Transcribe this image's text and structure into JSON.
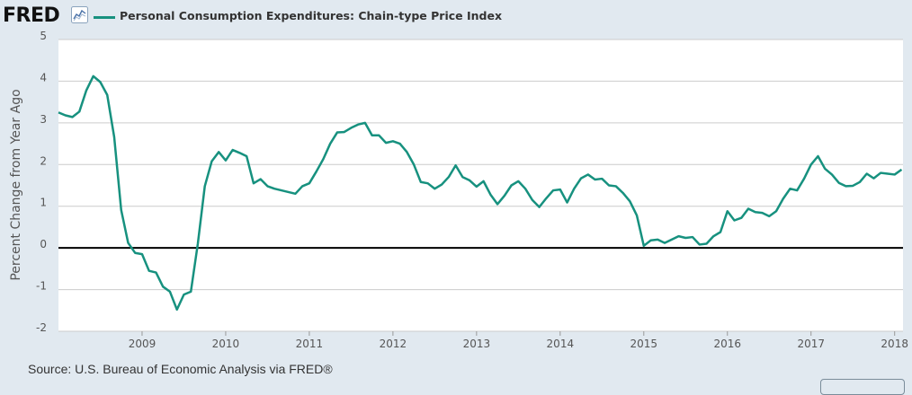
{
  "header": {
    "logo_text": "FRED",
    "logo_icon": "line-chart-icon",
    "legend_label": "Personal Consumption Expenditures: Chain-type Price Index"
  },
  "source_text": "Source: U.S. Bureau of Economic Analysis via FRED®",
  "colors": {
    "series": "#17917f",
    "background": "#e1e9f0",
    "plot_background": "#ffffff",
    "gridline": "#cccccc",
    "zero_line": "#000000"
  },
  "chart_data": {
    "type": "line",
    "title": "Personal Consumption Expenditures: Chain-type Price Index",
    "xlabel": "",
    "ylabel": "Percent Change from Year Ago",
    "xlim": [
      2008.0,
      2018.1
    ],
    "ylim": [
      -2,
      5
    ],
    "grid": true,
    "legend": "top-left",
    "x_ticks": [
      2009,
      2010,
      2011,
      2012,
      2013,
      2014,
      2015,
      2016,
      2017,
      2018
    ],
    "x_tick_labels": [
      "2009",
      "2010",
      "2011",
      "2012",
      "2013",
      "2014",
      "2015",
      "2016",
      "2017",
      "2018"
    ],
    "y_ticks": [
      -2,
      -1,
      0,
      1,
      2,
      3,
      4,
      5
    ],
    "y_tick_labels": [
      "-2",
      "-1",
      "0",
      "1",
      "2",
      "3",
      "4",
      "5"
    ],
    "series": [
      {
        "name": "Personal Consumption Expenditures: Chain-type Price Index",
        "start": "2008-01",
        "frequency": "monthly",
        "values": [
          3.25,
          3.18,
          3.14,
          3.27,
          3.78,
          4.12,
          3.98,
          3.67,
          2.66,
          0.91,
          0.12,
          -0.12,
          -0.15,
          -0.55,
          -0.59,
          -0.93,
          -1.05,
          -1.48,
          -1.12,
          -1.05,
          0.1,
          1.48,
          2.08,
          2.3,
          2.1,
          2.35,
          2.28,
          2.2,
          1.55,
          1.65,
          1.48,
          1.42,
          1.38,
          1.34,
          1.3,
          1.48,
          1.55,
          1.83,
          2.13,
          2.5,
          2.77,
          2.78,
          2.88,
          2.96,
          3.0,
          2.7,
          2.7,
          2.52,
          2.56,
          2.5,
          2.3,
          2.0,
          1.58,
          1.55,
          1.42,
          1.52,
          1.7,
          1.98,
          1.7,
          1.62,
          1.47,
          1.6,
          1.28,
          1.05,
          1.25,
          1.5,
          1.6,
          1.42,
          1.15,
          0.98,
          1.19,
          1.38,
          1.4,
          1.09,
          1.42,
          1.67,
          1.76,
          1.64,
          1.66,
          1.5,
          1.48,
          1.32,
          1.12,
          0.78,
          0.05,
          0.18,
          0.2,
          0.12,
          0.2,
          0.28,
          0.24,
          0.26,
          0.08,
          0.1,
          0.28,
          0.38,
          0.88,
          0.66,
          0.72,
          0.94,
          0.86,
          0.84,
          0.76,
          0.88,
          1.18,
          1.42,
          1.38,
          1.66,
          2.0,
          2.2,
          1.9,
          1.76,
          1.56,
          1.48,
          1.49,
          1.58,
          1.78,
          1.67,
          1.8,
          1.78,
          1.76,
          1.88
        ]
      }
    ]
  }
}
